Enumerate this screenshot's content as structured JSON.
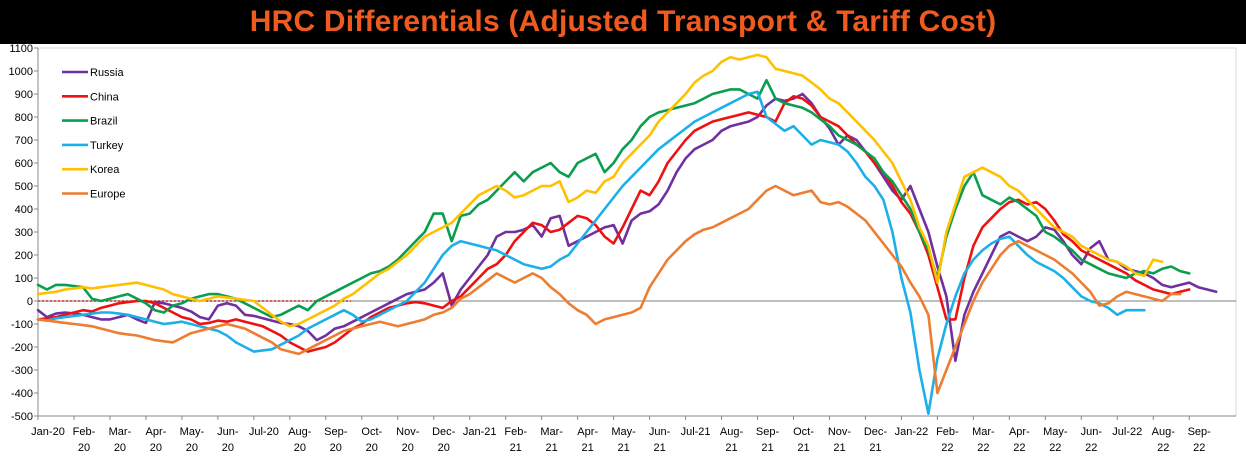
{
  "chart_data": {
    "type": "line",
    "title": "HRC Differentials (Adjusted Transport & Tariff Cost)",
    "title_color": "#ef5a1f",
    "xlabel": "",
    "ylabel": "",
    "ylim": [
      -500,
      1100
    ],
    "y_ticks": [
      "-500",
      "-400",
      "-300",
      "-200",
      "-100",
      "0",
      "100",
      "200",
      "300",
      "400",
      "500",
      "600",
      "700",
      "800",
      "900",
      "1000",
      "1100"
    ],
    "x_tick_labels": [
      [
        "Jan-20",
        ""
      ],
      [
        "Feb-",
        "20"
      ],
      [
        "Mar-",
        "20"
      ],
      [
        "Apr-",
        "20"
      ],
      [
        "May-",
        "20"
      ],
      [
        "Jun-",
        "20"
      ],
      [
        "Jul-20",
        ""
      ],
      [
        "Aug-",
        "20"
      ],
      [
        "Sep-",
        "20"
      ],
      [
        "Oct-",
        "20"
      ],
      [
        "Nov-",
        "20"
      ],
      [
        "Dec-",
        "20"
      ],
      [
        "Jan-21",
        ""
      ],
      [
        "Feb-",
        "21"
      ],
      [
        "Mar-",
        "21"
      ],
      [
        "Apr-",
        "21"
      ],
      [
        "May-",
        "21"
      ],
      [
        "Jun-",
        "21"
      ],
      [
        "Jul-21",
        ""
      ],
      [
        "Aug-",
        "21"
      ],
      [
        "Sep-",
        "21"
      ],
      [
        "Oct-",
        "21"
      ],
      [
        "Nov-",
        "21"
      ],
      [
        "Dec-",
        "21"
      ],
      [
        "Jan-22",
        ""
      ],
      [
        "Feb-",
        "22"
      ],
      [
        "Mar-",
        "22"
      ],
      [
        "Apr-",
        "22"
      ],
      [
        "May-",
        "22"
      ],
      [
        "Jun-",
        "22"
      ],
      [
        "Jul-22",
        ""
      ],
      [
        "Aug-",
        "22"
      ],
      [
        "Sep-",
        "22"
      ]
    ],
    "x_months": [
      0,
      1,
      2,
      3,
      4,
      5,
      6,
      7,
      8,
      9,
      10,
      11,
      12,
      13,
      14,
      15,
      16,
      17,
      18,
      19,
      20,
      21,
      22,
      23,
      24,
      25,
      26,
      27,
      28,
      29,
      30,
      31,
      32,
      33,
      34,
      35,
      36,
      37,
      38,
      39,
      40,
      41,
      42,
      43,
      44,
      45,
      46,
      47,
      48,
      49,
      50,
      51,
      52,
      53,
      54,
      55,
      56,
      57,
      58,
      59,
      60,
      61,
      62,
      63,
      64,
      65,
      66,
      67,
      68,
      69,
      70,
      71,
      72,
      73,
      74,
      75,
      76,
      77,
      78,
      79,
      80,
      81,
      82,
      83,
      84,
      85,
      86,
      87,
      88,
      89,
      90,
      91,
      92,
      93,
      94,
      95,
      96,
      97,
      98,
      99,
      100,
      101,
      102,
      103,
      104,
      105,
      106,
      107,
      108,
      109,
      110,
      111,
      112,
      113,
      114,
      115,
      116,
      117,
      118,
      119,
      120,
      121,
      122,
      123,
      124,
      125,
      126,
      127,
      128,
      129,
      130,
      131,
      132,
      133,
      134,
      135,
      136,
      137,
      138,
      139,
      140,
      141,
      142,
      143
    ],
    "x_months_per_step": 0.25,
    "legend_position": "top-left",
    "zero_reference": true,
    "series": [
      {
        "name": "Russia",
        "color": "#7030a0",
        "values": [
          -40,
          -70,
          -55,
          -50,
          -55,
          -60,
          -70,
          -80,
          -80,
          -70,
          -60,
          -80,
          -95,
          -5,
          -10,
          -20,
          -30,
          -45,
          -70,
          -80,
          -20,
          -10,
          -20,
          -60,
          -65,
          -75,
          -85,
          -95,
          -100,
          -110,
          -130,
          -170,
          -150,
          -120,
          -110,
          -90,
          -70,
          -50,
          -30,
          -10,
          10,
          30,
          40,
          50,
          80,
          120,
          -20,
          50,
          100,
          150,
          200,
          280,
          300,
          300,
          310,
          330,
          280,
          360,
          370,
          240,
          260,
          280,
          300,
          320,
          330,
          250,
          350,
          380,
          390,
          420,
          480,
          560,
          620,
          660,
          680,
          700,
          740,
          760,
          770,
          780,
          800,
          850,
          880,
          870,
          880,
          900,
          860,
          800,
          750,
          680,
          720,
          700,
          650,
          600,
          540,
          480,
          440,
          500,
          400,
          300,
          150,
          20,
          -260,
          -60,
          40,
          120,
          200,
          280,
          300,
          280,
          260,
          280,
          320,
          310,
          260,
          200,
          160,
          230,
          260,
          180,
          170,
          140,
          130,
          120,
          100,
          70,
          60,
          70,
          80,
          60,
          50,
          40
        ],
        "x_start": 0
      },
      {
        "name": "China",
        "color": "#ee1111",
        "values": [
          -80,
          -75,
          -70,
          -60,
          -50,
          -40,
          -45,
          -30,
          -20,
          -10,
          -5,
          0,
          0,
          -10,
          -30,
          -50,
          -70,
          -80,
          -100,
          -95,
          -85,
          -90,
          -80,
          -90,
          -100,
          -110,
          -130,
          -150,
          -180,
          -200,
          -220,
          -210,
          -200,
          -180,
          -150,
          -120,
          -100,
          -70,
          -50,
          -30,
          -20,
          -10,
          -5,
          -10,
          -20,
          -30,
          0,
          20,
          60,
          100,
          140,
          160,
          200,
          260,
          300,
          340,
          330,
          300,
          310,
          340,
          370,
          360,
          330,
          280,
          250,
          320,
          400,
          480,
          460,
          520,
          600,
          650,
          700,
          740,
          760,
          780,
          790,
          800,
          810,
          820,
          810,
          800,
          780,
          860,
          890,
          880,
          850,
          800,
          780,
          760,
          720,
          680,
          650,
          600,
          560,
          500,
          430,
          380,
          300,
          200,
          60,
          -80,
          -80,
          100,
          240,
          320,
          360,
          400,
          430,
          440,
          420,
          430,
          400,
          350,
          290,
          260,
          220,
          200,
          180,
          160,
          140,
          120,
          90,
          70,
          50,
          40,
          30,
          40,
          50
        ],
        "x_start": 0
      },
      {
        "name": "Brazil",
        "color": "#0a9e4f",
        "values": [
          70,
          50,
          70,
          70,
          65,
          60,
          10,
          0,
          10,
          20,
          30,
          10,
          -10,
          -40,
          -50,
          -20,
          -10,
          10,
          20,
          30,
          30,
          20,
          10,
          -10,
          -30,
          -50,
          -70,
          -60,
          -40,
          -20,
          -40,
          0,
          20,
          40,
          60,
          80,
          100,
          120,
          130,
          150,
          180,
          220,
          260,
          300,
          380,
          380,
          260,
          370,
          380,
          420,
          440,
          480,
          520,
          560,
          520,
          560,
          580,
          600,
          560,
          540,
          600,
          620,
          640,
          560,
          600,
          660,
          700,
          760,
          800,
          820,
          830,
          840,
          850,
          860,
          880,
          900,
          910,
          920,
          920,
          900,
          880,
          960,
          880,
          860,
          850,
          840,
          820,
          790,
          760,
          720,
          700,
          680,
          650,
          620,
          560,
          520,
          460,
          400,
          300,
          220,
          100,
          280,
          400,
          500,
          560,
          460,
          440,
          420,
          450,
          430,
          400,
          370,
          300,
          280,
          250,
          220,
          180,
          160,
          140,
          120,
          110,
          100,
          120,
          130,
          120,
          140,
          150,
          130,
          120
        ],
        "x_start": 0
      },
      {
        "name": "Turkey",
        "color": "#1cb0e8",
        "values": [
          -80,
          -85,
          -75,
          -70,
          -65,
          -60,
          -55,
          -50,
          -50,
          -55,
          -60,
          -70,
          -80,
          -90,
          -100,
          -95,
          -90,
          -100,
          -110,
          -120,
          -130,
          -150,
          -180,
          -200,
          -220,
          -215,
          -210,
          -190,
          -170,
          -150,
          -120,
          -100,
          -80,
          -60,
          -40,
          -60,
          -90,
          -80,
          -60,
          -40,
          -20,
          0,
          40,
          80,
          140,
          200,
          240,
          260,
          250,
          240,
          230,
          220,
          200,
          180,
          160,
          150,
          140,
          150,
          180,
          200,
          250,
          300,
          350,
          400,
          450,
          500,
          540,
          580,
          620,
          660,
          690,
          720,
          750,
          780,
          800,
          820,
          840,
          860,
          880,
          900,
          910,
          800,
          770,
          740,
          760,
          720,
          680,
          700,
          690,
          680,
          650,
          600,
          540,
          500,
          440,
          300,
          100,
          -50,
          -300,
          -490,
          -250,
          -100,
          20,
          120,
          180,
          220,
          250,
          270,
          280,
          240,
          200,
          170,
          150,
          130,
          100,
          60,
          20,
          0,
          -10,
          -30,
          -60,
          -40,
          -40,
          -40
        ],
        "x_start": 0
      },
      {
        "name": "Korea",
        "color": "#ffc000",
        "values": [
          30,
          35,
          40,
          50,
          55,
          60,
          55,
          60,
          65,
          70,
          75,
          80,
          70,
          60,
          50,
          30,
          20,
          10,
          0,
          10,
          20,
          15,
          10,
          5,
          0,
          -30,
          -60,
          -90,
          -110,
          -100,
          -80,
          -60,
          -40,
          -20,
          10,
          30,
          60,
          90,
          120,
          140,
          170,
          200,
          240,
          280,
          300,
          320,
          340,
          380,
          420,
          460,
          480,
          500,
          480,
          450,
          460,
          480,
          500,
          500,
          520,
          430,
          450,
          480,
          470,
          520,
          540,
          600,
          640,
          680,
          720,
          780,
          820,
          860,
          900,
          950,
          980,
          1000,
          1040,
          1060,
          1050,
          1060,
          1070,
          1060,
          1010,
          1000,
          990,
          980,
          950,
          920,
          880,
          860,
          820,
          780,
          740,
          700,
          650,
          600,
          520,
          440,
          320,
          240,
          80,
          300,
          420,
          540,
          560,
          580,
          560,
          540,
          500,
          480,
          440,
          400,
          360,
          320,
          300,
          280,
          240,
          220,
          200,
          180,
          170,
          150,
          120,
          110,
          180,
          170
        ],
        "x_start": 0
      },
      {
        "name": "Europe",
        "color": "#ed7d31",
        "values": [
          -80,
          -85,
          -90,
          -95,
          -100,
          -105,
          -110,
          -120,
          -130,
          -140,
          -145,
          -150,
          -160,
          -170,
          -175,
          -180,
          -160,
          -140,
          -130,
          -120,
          -110,
          -100,
          -110,
          -120,
          -140,
          -160,
          -180,
          -210,
          -220,
          -230,
          -210,
          -190,
          -170,
          -150,
          -130,
          -120,
          -110,
          -100,
          -90,
          -100,
          -110,
          -100,
          -90,
          -80,
          -60,
          -50,
          -30,
          10,
          30,
          60,
          90,
          120,
          100,
          80,
          100,
          120,
          100,
          60,
          30,
          -10,
          -40,
          -60,
          -100,
          -80,
          -70,
          -60,
          -50,
          -30,
          60,
          120,
          180,
          220,
          260,
          290,
          310,
          320,
          340,
          360,
          380,
          400,
          440,
          480,
          500,
          480,
          460,
          470,
          480,
          430,
          420,
          430,
          410,
          380,
          350,
          300,
          250,
          200,
          150,
          80,
          20,
          -60,
          -400,
          -300,
          -200,
          -100,
          0,
          80,
          140,
          200,
          240,
          260,
          240,
          220,
          200,
          180,
          150,
          120,
          80,
          40,
          -20,
          -10,
          20,
          40,
          30,
          20,
          10,
          0,
          30,
          30
        ],
        "x_start": 0
      }
    ]
  }
}
